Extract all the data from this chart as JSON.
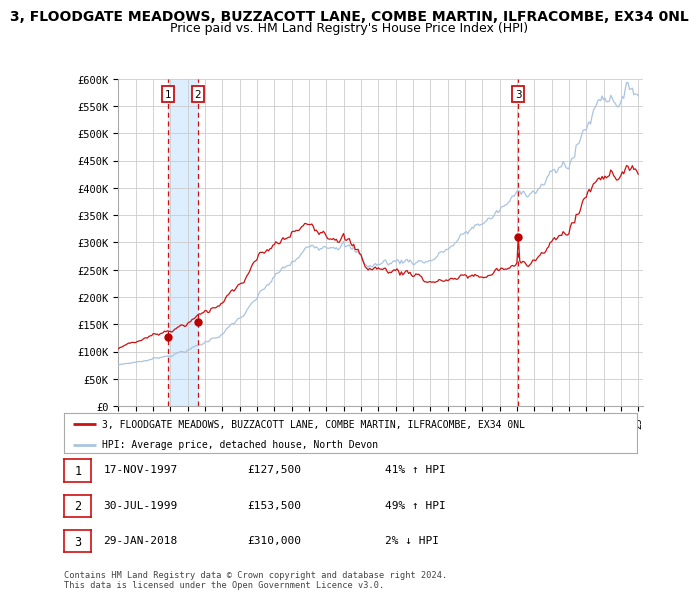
{
  "title1": "3, FLOODGATE MEADOWS, BUZZACOTT LANE, COMBE MARTIN, ILFRACOMBE, EX34 0NL",
  "title2": "Price paid vs. HM Land Registry's House Price Index (HPI)",
  "ylabel_vals": [
    "£0",
    "£50K",
    "£100K",
    "£150K",
    "£200K",
    "£250K",
    "£300K",
    "£350K",
    "£400K",
    "£450K",
    "£500K",
    "£550K",
    "£600K"
  ],
  "ylim": [
    0,
    600000
  ],
  "yticks": [
    0,
    50000,
    100000,
    150000,
    200000,
    250000,
    300000,
    350000,
    400000,
    450000,
    500000,
    550000,
    600000
  ],
  "xstart_year": 1995,
  "xend_year": 2025,
  "sale1_date": 1997.88,
  "sale1_price": 127500,
  "sale2_date": 1999.58,
  "sale2_price": 153500,
  "sale3_date": 2018.08,
  "sale3_price": 310000,
  "hpi_color": "#aac4e0",
  "price_color": "#cc1111",
  "sale_dot_color": "#bb0000",
  "vline_color": "#cc1111",
  "shade_color": "#ddeeff",
  "legend_label1": "3, FLOODGATE MEADOWS, BUZZACOTT LANE, COMBE MARTIN, ILFRACOMBE, EX34 0NL",
  "legend_label2": "HPI: Average price, detached house, North Devon",
  "table_data": [
    [
      "1",
      "17-NOV-1997",
      "£127,500",
      "41% ↑ HPI"
    ],
    [
      "2",
      "30-JUL-1999",
      "£153,500",
      "49% ↑ HPI"
    ],
    [
      "3",
      "29-JAN-2018",
      "£310,000",
      "2% ↓ HPI"
    ]
  ],
  "footnote": "Contains HM Land Registry data © Crown copyright and database right 2024.\nThis data is licensed under the Open Government Licence v3.0.",
  "background_color": "#ffffff",
  "grid_color": "#cccccc",
  "title_fontsize": 10,
  "subtitle_fontsize": 9
}
